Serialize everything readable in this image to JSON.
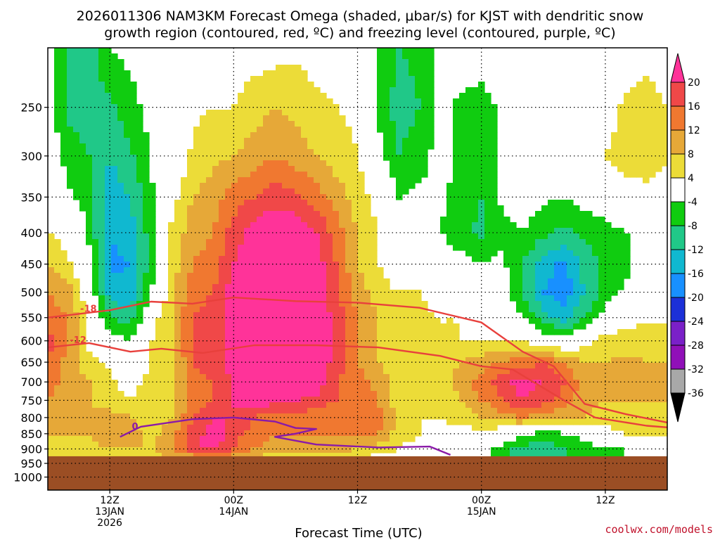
{
  "chart_data": {
    "type": "heatmap",
    "title_line1": "2026011306 NAM3KM Forecast Omega (shaded, μbar/s) for KJST with dendritic snow",
    "title_line2": "growth region (contoured, red, ºC) and freezing level (contoured, purple, ºC)",
    "xlabel": "Forecast Time (UTC)",
    "ylabel": "",
    "y_axis": {
      "scale": "log-pressure",
      "reversed": true,
      "range": [
        1050,
        200
      ],
      "ticks": [
        250,
        300,
        350,
        400,
        450,
        500,
        550,
        600,
        650,
        700,
        750,
        800,
        850,
        900,
        950,
        1000
      ]
    },
    "x_axis": {
      "range_hours": [
        0,
        60
      ],
      "ticks": [
        {
          "hour": 6,
          "lines": [
            "12Z",
            "13JAN",
            "2026"
          ]
        },
        {
          "hour": 18,
          "lines": [
            "00Z",
            "14JAN"
          ]
        },
        {
          "hour": 30,
          "lines": [
            "12Z",
            ""
          ]
        },
        {
          "hour": 42,
          "lines": [
            "00Z",
            "15JAN"
          ]
        },
        {
          "hour": 54,
          "lines": [
            "12Z",
            ""
          ]
        }
      ]
    },
    "colorbar": {
      "labels": [
        "20",
        "16",
        "12",
        "8",
        "4",
        "-4",
        "-8",
        "-12",
        "-16",
        "-20",
        "-24",
        "-28",
        "-32",
        "-36"
      ],
      "bins": [
        {
          "value": 20,
          "color": "#ff3399"
        },
        {
          "value": 16,
          "color": "#f04848"
        },
        {
          "value": 12,
          "color": "#f07830"
        },
        {
          "value": 8,
          "color": "#e6a838"
        },
        {
          "value": 4,
          "color": "#ecdc38"
        },
        {
          "value": -4,
          "color": "#ffffff"
        },
        {
          "value": -8,
          "color": "#10cc10"
        },
        {
          "value": -12,
          "color": "#20c888"
        },
        {
          "value": -16,
          "color": "#10b8d0"
        },
        {
          "value": -20,
          "color": "#1890ff"
        },
        {
          "value": -24,
          "color": "#1c30d8"
        },
        {
          "value": -28,
          "color": "#7a20c8"
        },
        {
          "value": -32,
          "color": "#9010b8"
        },
        {
          "value": -36,
          "color": "#a8a8a8"
        }
      ]
    },
    "omega_field": {
      "units": "μbar/s",
      "times_hours": [
        0,
        2,
        4,
        6,
        8,
        10,
        12,
        14,
        16,
        18,
        20,
        22,
        24,
        26,
        28,
        30,
        32,
        34,
        36,
        38,
        40,
        42,
        44,
        46,
        48,
        50,
        52,
        54,
        56,
        58,
        60
      ],
      "levels_hpa": [
        200,
        250,
        300,
        350,
        400,
        450,
        500,
        550,
        600,
        650,
        700,
        750,
        800,
        850,
        900,
        925
      ],
      "values": [
        [
          -3,
          -9,
          -10,
          -4,
          -3,
          -3,
          -3,
          2,
          3,
          2,
          2,
          2,
          3,
          2,
          1,
          2,
          -5,
          -8,
          -7,
          -2,
          -1,
          -1,
          0,
          0,
          0,
          0,
          0,
          0,
          1,
          2,
          1
        ],
        [
          -2,
          -9,
          -10,
          -9,
          -5,
          -3,
          -3,
          3,
          4,
          4,
          6,
          8,
          7,
          5,
          4,
          3,
          -5,
          -10,
          -8,
          -3,
          -5,
          -6,
          -3,
          -2,
          -2,
          0,
          0,
          2,
          5,
          6,
          4
        ],
        [
          0,
          -6,
          -8,
          -12,
          -9,
          -3,
          -1,
          5,
          7,
          8,
          10,
          12,
          10,
          8,
          6,
          4,
          -2,
          -8,
          -6,
          -2,
          -5,
          -6,
          -3,
          -2,
          -2,
          0,
          1,
          4,
          6,
          7,
          5
        ],
        [
          1,
          -3,
          -6,
          -14,
          -12,
          -5,
          2,
          8,
          10,
          14,
          16,
          18,
          17,
          14,
          10,
          6,
          2,
          -4,
          -3,
          -3,
          -6,
          -8,
          -3,
          -2,
          -3,
          -4,
          -2,
          0,
          2,
          2,
          0
        ],
        [
          4,
          2,
          -5,
          -16,
          -14,
          -6,
          5,
          10,
          12,
          18,
          22,
          25,
          24,
          20,
          14,
          8,
          4,
          -2,
          -3,
          -4,
          -7,
          -9,
          -5,
          -4,
          -7,
          -9,
          -7,
          -6,
          -4,
          -2,
          0
        ],
        [
          8,
          5,
          -3,
          -17,
          -16,
          -6,
          6,
          12,
          14,
          20,
          24,
          26,
          26,
          22,
          16,
          8,
          4,
          0,
          0,
          0,
          -2,
          -4,
          -3,
          -8,
          -14,
          -17,
          -10,
          -7,
          -5,
          -2,
          0
        ],
        [
          12,
          10,
          0,
          -14,
          -15,
          -4,
          7,
          14,
          16,
          22,
          25,
          27,
          26,
          24,
          17,
          10,
          6,
          4,
          4,
          2,
          2,
          0,
          -2,
          -8,
          -16,
          -19,
          -12,
          -6,
          -3,
          0,
          0
        ],
        [
          14,
          12,
          2,
          -8,
          -10,
          2,
          8,
          16,
          18,
          22,
          25,
          26,
          26,
          24,
          18,
          12,
          8,
          6,
          5,
          4,
          4,
          2,
          0,
          -4,
          -10,
          -14,
          -8,
          -2,
          2,
          3,
          3
        ],
        [
          18,
          12,
          2,
          -2,
          -4,
          4,
          8,
          16,
          18,
          22,
          25,
          26,
          26,
          24,
          18,
          12,
          8,
          8,
          6,
          4,
          4,
          4,
          4,
          4,
          0,
          -2,
          2,
          6,
          6,
          7,
          7
        ],
        [
          16,
          10,
          6,
          3,
          0,
          4,
          6,
          16,
          18,
          22,
          25,
          26,
          26,
          24,
          18,
          12,
          8,
          6,
          6,
          6,
          8,
          10,
          12,
          14,
          16,
          12,
          8,
          8,
          9,
          8,
          8
        ],
        [
          14,
          10,
          8,
          5,
          2,
          6,
          6,
          14,
          16,
          20,
          24,
          26,
          26,
          24,
          16,
          14,
          10,
          6,
          4,
          6,
          10,
          14,
          18,
          22,
          20,
          16,
          10,
          8,
          8,
          8,
          8
        ],
        [
          12,
          10,
          8,
          6,
          4,
          6,
          6,
          14,
          16,
          20,
          22,
          22,
          20,
          18,
          16,
          16,
          12,
          6,
          4,
          4,
          8,
          12,
          16,
          20,
          18,
          14,
          10,
          8,
          8,
          8,
          8
        ],
        [
          10,
          9,
          8,
          10,
          8,
          6,
          8,
          16,
          20,
          20,
          16,
          14,
          14,
          14,
          14,
          16,
          14,
          6,
          4,
          4,
          6,
          8,
          10,
          12,
          10,
          8,
          8,
          6,
          6,
          6,
          6
        ],
        [
          8,
          8,
          8,
          12,
          10,
          6,
          10,
          18,
          22,
          18,
          14,
          12,
          12,
          12,
          12,
          14,
          12,
          6,
          4,
          2,
          2,
          2,
          0,
          -2,
          -6,
          -4,
          -2,
          2,
          4,
          4,
          4
        ],
        [
          6,
          6,
          7,
          8,
          8,
          8,
          12,
          18,
          22,
          16,
          12,
          10,
          10,
          10,
          10,
          8,
          6,
          4,
          2,
          -2,
          -3,
          -2,
          -6,
          -10,
          -12,
          -8,
          -6,
          -4,
          -4,
          -3,
          -2
        ],
        [
          5,
          5,
          5,
          5,
          5,
          6,
          8,
          10,
          12,
          10,
          8,
          6,
          6,
          6,
          6,
          4,
          3,
          2,
          0,
          -3,
          -4,
          -2,
          -6,
          -10,
          -10,
          -8,
          -6,
          -4,
          -4,
          -4,
          -3
        ]
      ]
    },
    "contours": [
      {
        "name": "dendritic snow growth top",
        "value": -18,
        "label": "-18",
        "color": "#e8403c",
        "points": [
          [
            0,
            550
          ],
          [
            6,
            535
          ],
          [
            10,
            518
          ],
          [
            14,
            522
          ],
          [
            18,
            510
          ],
          [
            24,
            517
          ],
          [
            30,
            520
          ],
          [
            36,
            530
          ],
          [
            42,
            560
          ],
          [
            46,
            625
          ],
          [
            49,
            660
          ],
          [
            52,
            760
          ],
          [
            56,
            790
          ],
          [
            60,
            815
          ]
        ]
      },
      {
        "name": "dendritic snow growth bottom",
        "value": -12,
        "label": "-12",
        "color": "#e8403c",
        "points": [
          [
            0,
            615
          ],
          [
            4,
            605
          ],
          [
            8,
            625
          ],
          [
            11,
            618
          ],
          [
            15,
            628
          ],
          [
            20,
            610
          ],
          [
            26,
            610
          ],
          [
            32,
            615
          ],
          [
            38,
            635
          ],
          [
            42,
            660
          ],
          [
            45,
            668
          ],
          [
            50,
            750
          ],
          [
            53,
            800
          ],
          [
            58,
            825
          ],
          [
            60,
            830
          ]
        ]
      },
      {
        "name": "freezing level",
        "value": 0,
        "label": "0",
        "color": "#8a1aa8",
        "points": [
          [
            7,
            860
          ],
          [
            9,
            828
          ],
          [
            14,
            805
          ],
          [
            18,
            800
          ],
          [
            22,
            812
          ],
          [
            24,
            832
          ],
          [
            26,
            835
          ],
          [
            24,
            850
          ],
          [
            22,
            860
          ],
          [
            26,
            885
          ],
          [
            32,
            895
          ],
          [
            37,
            892
          ],
          [
            39,
            920
          ]
        ]
      }
    ],
    "credit": "coolwx.com/models"
  }
}
